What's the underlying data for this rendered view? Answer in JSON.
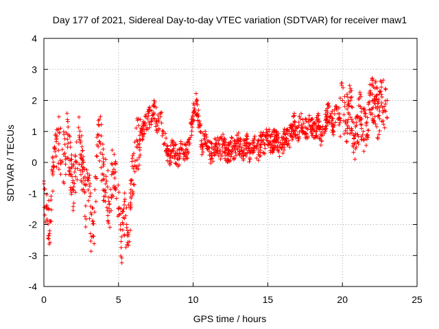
{
  "chart_data": {
    "type": "scatter",
    "title": "Day 177 of 2021, Sidereal Day-to-day VTEC variation (SDTVAR) for receiver maw1",
    "xlabel": "GPS time / hours",
    "ylabel": "SDTVAR / TECUs",
    "xlim": [
      0,
      25
    ],
    "ylim": [
      -4,
      4
    ],
    "xticks": [
      0,
      5,
      10,
      15,
      20,
      25
    ],
    "yticks": [
      -4,
      -3,
      -2,
      -1,
      0,
      1,
      2,
      3,
      4
    ],
    "grid": true,
    "marker": "+",
    "color": "#ff0000",
    "series": [
      {
        "name": "SDTVAR",
        "x": [
          0.0,
          0.2,
          0.4,
          0.6,
          0.8,
          1.0,
          1.2,
          1.4,
          1.6,
          1.8,
          2.0,
          2.2,
          2.4,
          2.6,
          2.8,
          3.0,
          3.2,
          3.4,
          3.6,
          3.8,
          4.0,
          4.2,
          4.4,
          4.6,
          4.8,
          5.0,
          5.2,
          5.4,
          5.6,
          5.8,
          6.0,
          6.2,
          6.4,
          6.6,
          6.8,
          7.0,
          7.2,
          7.4,
          7.6,
          7.8,
          8.0,
          8.2,
          8.4,
          8.6,
          8.8,
          9.0,
          9.2,
          9.4,
          9.6,
          9.8,
          10.0,
          10.2,
          10.4,
          10.6,
          10.8,
          11.0,
          11.2,
          11.4,
          11.6,
          11.8,
          12.0,
          12.2,
          12.4,
          12.6,
          12.8,
          13.0,
          13.2,
          13.4,
          13.6,
          13.8,
          14.0,
          14.2,
          14.4,
          14.6,
          14.8,
          15.0,
          15.2,
          15.4,
          15.6,
          15.8,
          16.0,
          16.2,
          16.4,
          16.6,
          16.8,
          17.0,
          17.2,
          17.4,
          17.6,
          17.8,
          18.0,
          18.2,
          18.4,
          18.6,
          18.8,
          19.0,
          19.2,
          19.4,
          19.6,
          19.8,
          20.0,
          20.2,
          20.4,
          20.6,
          20.8,
          21.0,
          21.2,
          21.4,
          21.6,
          21.8,
          22.0,
          22.2,
          22.4,
          22.6,
          22.8,
          23.0
        ],
        "y": [
          -0.6,
          -1.5,
          -1.9,
          -0.4,
          0.2,
          0.6,
          0.0,
          0.3,
          0.9,
          -0.2,
          -0.9,
          0.0,
          0.8,
          -0.3,
          -1.4,
          -0.5,
          -2.4,
          -1.6,
          0.9,
          0.6,
          -0.4,
          -0.6,
          -1.6,
          -0.3,
          -0.8,
          -1.5,
          -2.4,
          -1.8,
          -2.2,
          -1.5,
          -0.2,
          0.5,
          0.6,
          0.9,
          1.2,
          1.5,
          1.4,
          1.8,
          1.2,
          1.6,
          1.0,
          0.4,
          0.2,
          0.4,
          0.3,
          0.1,
          0.4,
          0.3,
          0.3,
          0.8,
          1.6,
          1.9,
          1.2,
          0.5,
          0.9,
          0.5,
          0.3,
          0.4,
          0.5,
          0.4,
          0.6,
          0.4,
          0.3,
          0.5,
          0.4,
          0.7,
          0.4,
          0.4,
          0.6,
          0.3,
          0.7,
          0.5,
          0.4,
          0.7,
          0.6,
          0.9,
          0.6,
          0.7,
          0.8,
          0.5,
          0.6,
          0.9,
          0.7,
          1.0,
          1.3,
          0.9,
          1.4,
          1.0,
          1.1,
          1.2,
          1.2,
          1.0,
          1.3,
          0.7,
          1.1,
          1.6,
          1.5,
          1.2,
          1.8,
          1.4,
          2.0,
          1.3,
          1.6,
          1.8,
          0.6,
          0.9,
          1.8,
          1.0,
          1.2,
          1.7,
          2.0,
          1.9,
          1.5,
          2.2,
          1.8,
          2.0
        ]
      }
    ]
  }
}
